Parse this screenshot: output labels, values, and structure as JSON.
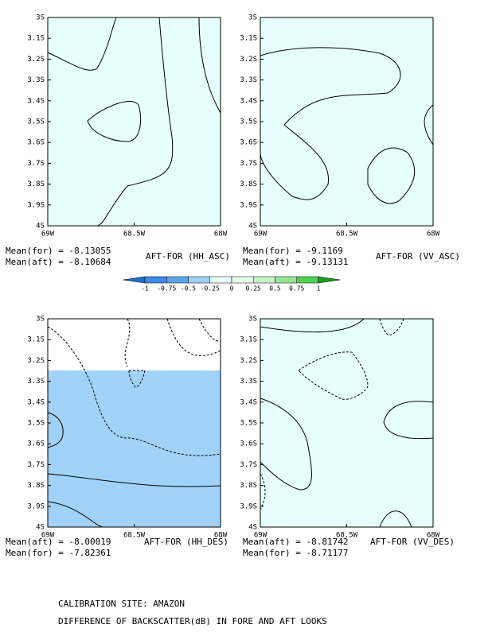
{
  "panels": [
    {
      "title": "AFT-FOR (HH_ASC)",
      "stats": [
        "Mean(for) = -8.13055",
        "Mean(aft) = -8.10684"
      ]
    },
    {
      "title": "AFT-FOR (VV_ASC)",
      "stats": [
        "Mean(for) = -9.1169",
        "Mean(aft) = -9.13131"
      ]
    },
    {
      "title": "AFT-FOR (HH_DES)",
      "stats": [
        "Mean(aft) = -8.00019",
        "Mean(for) = -7.82361"
      ]
    },
    {
      "title": "AFT-FOR (VV_DES)",
      "stats": [
        "Mean(aft) = -8.81742",
        "Mean(for) = -8.71177"
      ]
    }
  ],
  "lat_ticks": [
    "3S",
    "3.1S",
    "3.2S",
    "3.3S",
    "3.4S",
    "3.5S",
    "3.6S",
    "3.7S",
    "3.8S",
    "3.9S",
    "4S"
  ],
  "lon_ticks": [
    "69W",
    "68.5W",
    "68W"
  ],
  "colorbar": {
    "ticks": [
      -1,
      -0.75,
      -0.5,
      -0.25,
      0,
      0.25,
      0.5,
      0.75,
      1
    ],
    "colors": [
      "#1e6ed2",
      "#3c8ce6",
      "#5aa5f0",
      "#a0d2fa",
      "#e6ffff",
      "#e6ffe6",
      "#c8f5c8",
      "#96e696",
      "#50d250",
      "#1ea01e"
    ]
  },
  "footer": [
    "CALIBRATION SITE: AMAZON",
    "DIFFERENCE OF BACKSCATTER(dB) IN FORE AND AFT LOOKS"
  ]
}
